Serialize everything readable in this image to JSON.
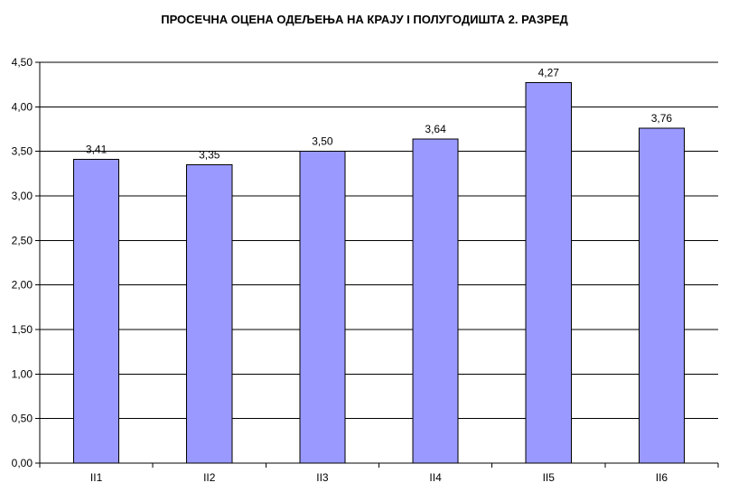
{
  "chart_data": {
    "type": "bar",
    "title": "ПРОСЕЧНА ОЦЕНА ОДЕЉЕЊА НА КРАЈУ  I ПОЛУГОДИШТА 2. РАЗРЕД",
    "categories": [
      "II1",
      "II2",
      "II3",
      "II4",
      "II5",
      "II6"
    ],
    "values": [
      3.41,
      3.35,
      3.5,
      3.64,
      4.27,
      3.76
    ],
    "value_labels": [
      "3,41",
      "3,35",
      "3,50",
      "3,64",
      "4,27",
      "3,76"
    ],
    "y_ticks": [
      "0,00",
      "0,50",
      "1,00",
      "1,50",
      "2,00",
      "2,50",
      "3,00",
      "3,50",
      "4,00",
      "4,50"
    ],
    "xlabel": "",
    "ylabel": "",
    "ylim": [
      0,
      4.5
    ],
    "y_step": 0.5,
    "grid": true,
    "legend": "none",
    "bar_color": "#9999ff",
    "bar_border_color": "#000000"
  }
}
